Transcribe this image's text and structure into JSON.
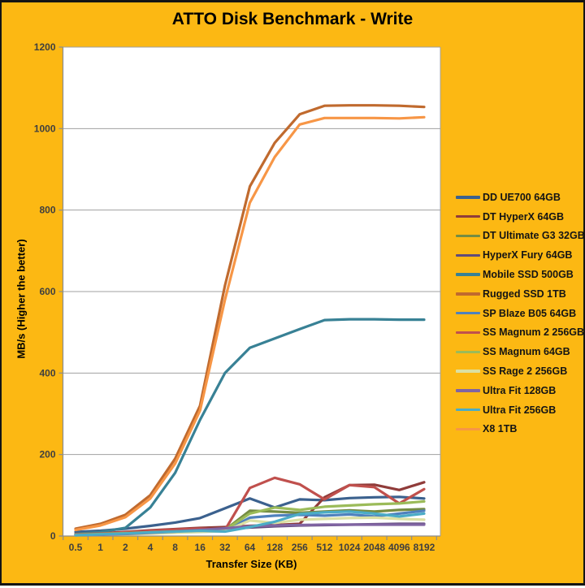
{
  "title": "ATTO Disk Benchmark - Write",
  "colors": {
    "background": "#FCB813",
    "frame_border": "#141414",
    "plot_background": "#FFFFFF",
    "gridline": "#A0A0A0",
    "axis_line": "#8C8C8C",
    "tick_label": "#3F3F3F",
    "title_text": "#000000",
    "legend_text": "#141414"
  },
  "chart_data": {
    "type": "line",
    "title": "ATTO Disk Benchmark - Write",
    "xlabel": "Transfer Size (KB)",
    "ylabel": "MB/s (Higher the better)",
    "ylim": [
      0,
      1200
    ],
    "yticks": [
      0,
      200,
      400,
      600,
      800,
      1000,
      1200
    ],
    "grid": true,
    "legend_position": "right",
    "categories": [
      "0.5",
      "1",
      "2",
      "4",
      "8",
      "16",
      "32",
      "64",
      "128",
      "256",
      "512",
      "1024",
      "2048",
      "4096",
      "8192"
    ],
    "series": [
      {
        "name": "DD UE700 64GB",
        "color": "#3B618E",
        "values": [
          10,
          13,
          18,
          25,
          33,
          44,
          68,
          92,
          70,
          90,
          88,
          93,
          95,
          96,
          92
        ]
      },
      {
        "name": "DT HyperX 64GB",
        "color": "#903C3A",
        "values": [
          5,
          7,
          10,
          14,
          17,
          20,
          22,
          25,
          27,
          30,
          95,
          125,
          126,
          113,
          132
        ]
      },
      {
        "name": "DT Ultimate G3 32GB",
        "color": "#748C43",
        "values": [
          4,
          5,
          7,
          9,
          11,
          13,
          15,
          62,
          60,
          57,
          60,
          63,
          60,
          64,
          66
        ]
      },
      {
        "name": "HyperX Fury 64GB",
        "color": "#604B7A",
        "values": [
          3,
          4,
          6,
          8,
          11,
          14,
          17,
          21,
          24,
          26,
          27,
          28,
          29,
          30,
          30
        ]
      },
      {
        "name": "Mobile SSD 500GB",
        "color": "#388195",
        "values": [
          5,
          10,
          20,
          70,
          155,
          285,
          400,
          462,
          485,
          508,
          530,
          532,
          532,
          531,
          531
        ]
      },
      {
        "name": "Rugged SSD 1TB",
        "color": "#C06A2E",
        "values": [
          18,
          30,
          52,
          100,
          190,
          320,
          615,
          858,
          965,
          1035,
          1056,
          1057,
          1057,
          1056,
          1053
        ]
      },
      {
        "name": "SP Blaze B05 64GB",
        "color": "#4F81BD",
        "values": [
          2,
          3,
          5,
          7,
          9,
          11,
          13,
          45,
          50,
          52,
          50,
          53,
          48,
          55,
          62
        ]
      },
      {
        "name": "SS Magnum 2 256GB",
        "color": "#C0504D",
        "values": [
          4,
          6,
          9,
          13,
          16,
          18,
          15,
          118,
          143,
          127,
          90,
          125,
          120,
          80,
          115
        ]
      },
      {
        "name": "SS Magnum 64GB",
        "color": "#9BBB59",
        "values": [
          3,
          5,
          7,
          9,
          11,
          13,
          15,
          55,
          70,
          64,
          72,
          75,
          78,
          80,
          85
        ]
      },
      {
        "name": "SS Rage 2 256GB",
        "color": "#DBE0A3",
        "values": [
          2,
          3,
          4,
          6,
          8,
          10,
          12,
          38,
          32,
          40,
          42,
          44,
          45,
          42,
          40
        ]
      },
      {
        "name": "Ultra Fit 128GB",
        "color": "#8064A2",
        "values": [
          2,
          3,
          5,
          8,
          11,
          15,
          19,
          24,
          26,
          27,
          28,
          28,
          28,
          28,
          28
        ]
      },
      {
        "name": "Ultra Fit 256GB",
        "color": "#4BACC6",
        "values": [
          2,
          4,
          6,
          9,
          11,
          13,
          11,
          22,
          35,
          54,
          58,
          60,
          55,
          48,
          55
        ]
      },
      {
        "name": "X8 1TB",
        "color": "#F79646",
        "values": [
          15,
          26,
          46,
          92,
          178,
          308,
          580,
          818,
          930,
          1010,
          1026,
          1026,
          1026,
          1025,
          1028
        ]
      }
    ]
  }
}
